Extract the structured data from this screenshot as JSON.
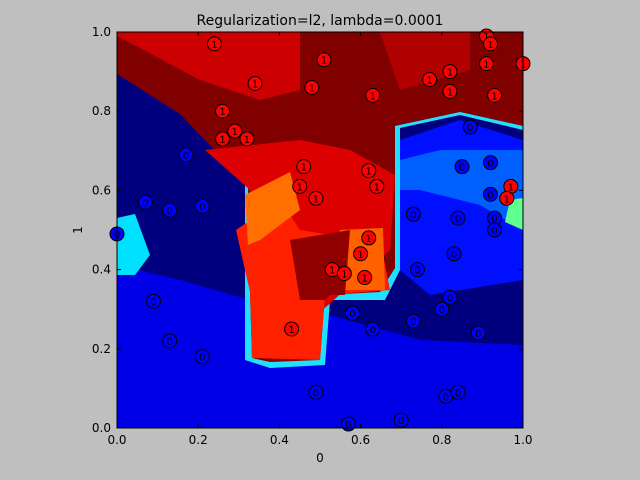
{
  "chart_data": {
    "type": "scatter",
    "title": "Regularization=l2, lambda=0.0001",
    "xlabel": "0",
    "ylabel": "1",
    "xlim": [
      0,
      1
    ],
    "ylim": [
      0,
      1
    ],
    "xticks": [
      "0.0",
      "0.2",
      "0.4",
      "0.6",
      "0.8",
      "1.0"
    ],
    "yticks": [
      "0.0",
      "0.2",
      "0.4",
      "0.6",
      "0.8",
      "1.0"
    ],
    "grid": false,
    "background": "decision-region map (jet colormap)",
    "class_colors": {
      "0": "#0000ff",
      "1": "#ff0000"
    },
    "points": [
      {
        "x": 0.24,
        "y": 0.97,
        "c": 1
      },
      {
        "x": 0.51,
        "y": 0.93,
        "c": 1
      },
      {
        "x": 0.34,
        "y": 0.87,
        "c": 1
      },
      {
        "x": 0.48,
        "y": 0.86,
        "c": 1
      },
      {
        "x": 0.63,
        "y": 0.84,
        "c": 1
      },
      {
        "x": 0.77,
        "y": 0.88,
        "c": 1
      },
      {
        "x": 0.82,
        "y": 0.9,
        "c": 1
      },
      {
        "x": 0.82,
        "y": 0.85,
        "c": 1
      },
      {
        "x": 0.91,
        "y": 0.99,
        "c": 1
      },
      {
        "x": 0.92,
        "y": 0.97,
        "c": 1
      },
      {
        "x": 0.91,
        "y": 0.92,
        "c": 1
      },
      {
        "x": 0.93,
        "y": 0.84,
        "c": 1
      },
      {
        "x": 1.0,
        "y": 0.92,
        "c": 1
      },
      {
        "x": 0.26,
        "y": 0.8,
        "c": 1
      },
      {
        "x": 0.29,
        "y": 0.75,
        "c": 1
      },
      {
        "x": 0.26,
        "y": 0.73,
        "c": 1
      },
      {
        "x": 0.32,
        "y": 0.73,
        "c": 1
      },
      {
        "x": 0.46,
        "y": 0.66,
        "c": 1
      },
      {
        "x": 0.45,
        "y": 0.61,
        "c": 1
      },
      {
        "x": 0.49,
        "y": 0.58,
        "c": 1
      },
      {
        "x": 0.62,
        "y": 0.65,
        "c": 1
      },
      {
        "x": 0.64,
        "y": 0.61,
        "c": 1
      },
      {
        "x": 0.62,
        "y": 0.48,
        "c": 1
      },
      {
        "x": 0.6,
        "y": 0.44,
        "c": 1
      },
      {
        "x": 0.53,
        "y": 0.4,
        "c": 1
      },
      {
        "x": 0.56,
        "y": 0.39,
        "c": 1
      },
      {
        "x": 0.61,
        "y": 0.38,
        "c": 1
      },
      {
        "x": 0.43,
        "y": 0.25,
        "c": 1
      },
      {
        "x": 0.97,
        "y": 0.61,
        "c": 1
      },
      {
        "x": 0.96,
        "y": 0.58,
        "c": 1
      },
      {
        "x": 0.0,
        "y": 0.49,
        "c": 0
      },
      {
        "x": 0.07,
        "y": 0.57,
        "c": 0
      },
      {
        "x": 0.13,
        "y": 0.55,
        "c": 0
      },
      {
        "x": 0.21,
        "y": 0.56,
        "c": 0
      },
      {
        "x": 0.17,
        "y": 0.69,
        "c": 0
      },
      {
        "x": 0.09,
        "y": 0.32,
        "c": 0
      },
      {
        "x": 0.13,
        "y": 0.22,
        "c": 0
      },
      {
        "x": 0.21,
        "y": 0.18,
        "c": 0
      },
      {
        "x": 0.49,
        "y": 0.09,
        "c": 0
      },
      {
        "x": 0.57,
        "y": 0.01,
        "c": 0
      },
      {
        "x": 0.7,
        "y": 0.02,
        "c": 0
      },
      {
        "x": 0.81,
        "y": 0.08,
        "c": 0
      },
      {
        "x": 0.84,
        "y": 0.09,
        "c": 0
      },
      {
        "x": 0.58,
        "y": 0.29,
        "c": 0
      },
      {
        "x": 0.63,
        "y": 0.25,
        "c": 0
      },
      {
        "x": 0.73,
        "y": 0.27,
        "c": 0
      },
      {
        "x": 0.8,
        "y": 0.3,
        "c": 0
      },
      {
        "x": 0.82,
        "y": 0.33,
        "c": 0
      },
      {
        "x": 0.89,
        "y": 0.24,
        "c": 0
      },
      {
        "x": 0.74,
        "y": 0.4,
        "c": 0
      },
      {
        "x": 0.83,
        "y": 0.44,
        "c": 0
      },
      {
        "x": 0.73,
        "y": 0.54,
        "c": 0
      },
      {
        "x": 0.84,
        "y": 0.53,
        "c": 0
      },
      {
        "x": 0.85,
        "y": 0.66,
        "c": 0
      },
      {
        "x": 0.87,
        "y": 0.76,
        "c": 0
      },
      {
        "x": 0.92,
        "y": 0.67,
        "c": 0
      },
      {
        "x": 0.92,
        "y": 0.59,
        "c": 0
      },
      {
        "x": 0.93,
        "y": 0.53,
        "c": 0
      },
      {
        "x": 0.93,
        "y": 0.5,
        "c": 0
      }
    ]
  }
}
